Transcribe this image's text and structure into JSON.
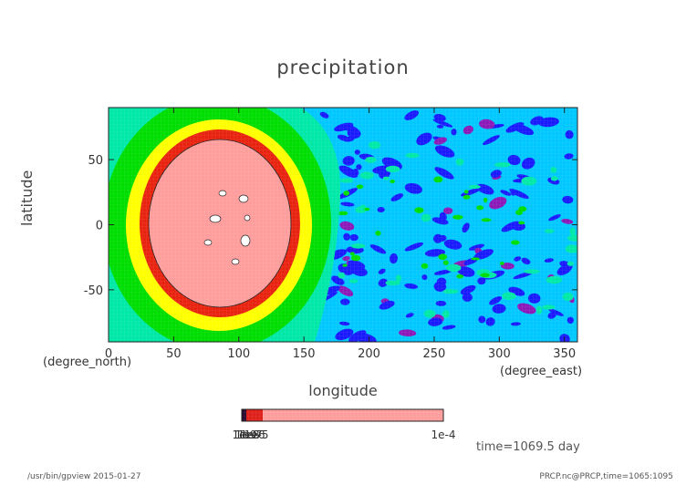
{
  "chart_data": {
    "type": "heatmap",
    "title": "precipitation",
    "xlabel": "longitude",
    "ylabel": "latitude",
    "x_units": "(degree_east)",
    "y_units": "(degree_north)",
    "xlim": [
      0,
      360
    ],
    "ylim": [
      -90,
      90
    ],
    "x_ticks": [
      0,
      50,
      100,
      150,
      200,
      250,
      300,
      350
    ],
    "y_ticks": [
      -50,
      0,
      50
    ],
    "colorbar": {
      "tick_labels": [
        "1e-9",
        "1e-8",
        "1e-7",
        "1e-6",
        "1e-5",
        "1e-4"
      ],
      "colors": [
        "#2a0a30",
        "#e0201a",
        "#e0201a",
        "#ff9d9d"
      ]
    },
    "features": [
      {
        "name": "pink core",
        "lon_range": [
          30,
          145
        ],
        "lat_range": [
          -70,
          65
        ],
        "color": "#ff9d9d"
      },
      {
        "name": "red ring",
        "color": "#e82410"
      },
      {
        "name": "yellow ring",
        "color": "#ffff00"
      },
      {
        "name": "green ring",
        "color": "#00dd00"
      },
      {
        "name": "teal belt",
        "color": "#00e8a8"
      },
      {
        "name": "cyan background",
        "color": "#00c8ff"
      },
      {
        "name": "blue patches",
        "color": "#1a1aff"
      },
      {
        "name": "purple patches",
        "color": "#8c1ab8"
      }
    ]
  },
  "annotation": {
    "time": "time=1069.5 day"
  },
  "footer": {
    "left": "/usr/bin/gpview  2015-01-27",
    "right": "PRCP.nc@PRCP,time=1065:1095"
  }
}
